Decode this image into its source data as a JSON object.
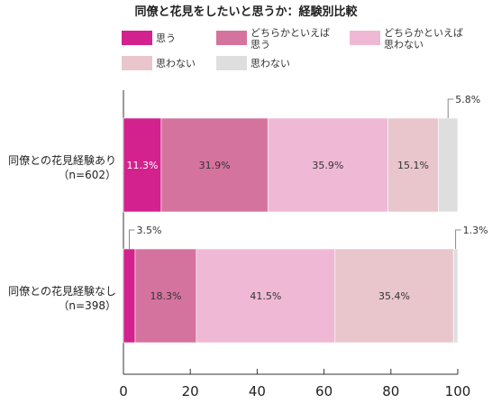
{
  "chart_data": {
    "type": "bar",
    "orientation": "horizontal",
    "stacked": true,
    "title": "同僚と花見をしたいと思うか：経験別比較",
    "xlim": [
      0,
      100
    ],
    "xticks": [
      0,
      20,
      40,
      60,
      80,
      100
    ],
    "grid": false,
    "legend_position": "top",
    "colors": [
      "#d3218d",
      "#d5739f",
      "#efb9d5",
      "#e8c6cc",
      "#dedede"
    ],
    "series_names": [
      "思う",
      "どちらかといえば\n思う",
      "どちらかといえば\n思わない",
      "思わない",
      "思わない"
    ],
    "categories": [
      {
        "label": "同僚との花見経験あり",
        "sublabel": "（n=602）"
      },
      {
        "label": "同僚との花見経験なし",
        "sublabel": "（n=398）"
      }
    ],
    "values": [
      [
        11.3,
        31.9,
        35.9,
        15.1,
        5.8
      ],
      [
        3.5,
        18.3,
        41.5,
        35.4,
        1.3
      ]
    ],
    "labels": [
      [
        "11.3%",
        "31.9%",
        "35.9%",
        "15.1%",
        "5.8%"
      ],
      [
        "3.5%",
        "18.3%",
        "41.5%",
        "35.4%",
        "1.3%"
      ]
    ]
  }
}
